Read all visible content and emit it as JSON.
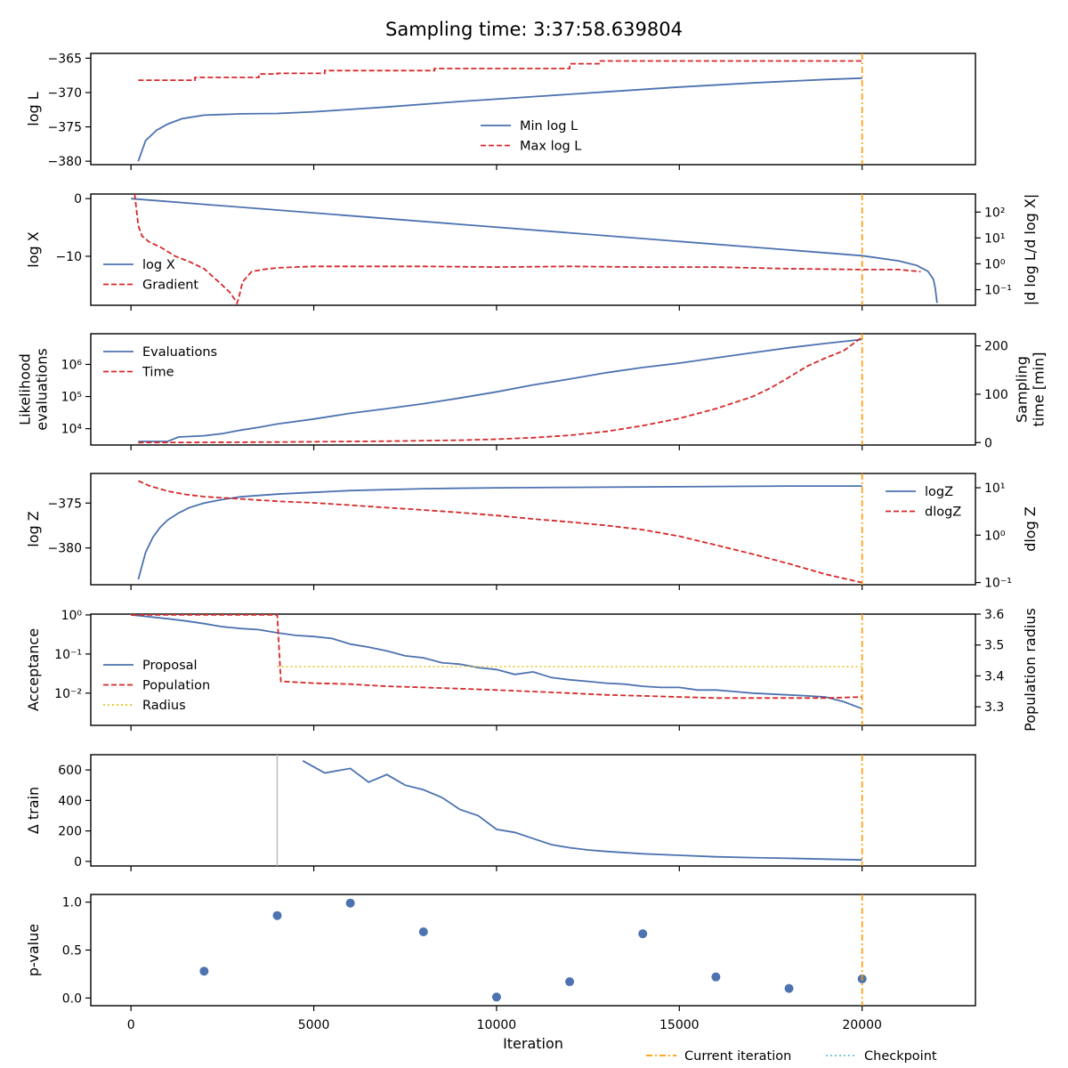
{
  "title": "Sampling time: 3:37:58.639804",
  "colors": {
    "blue": "#4c72b0",
    "red": "#d62728",
    "gold": "#e6c217",
    "orange": "#ff9900",
    "cyan": "#66c2d6",
    "gray": "#bbbbbb"
  },
  "x_axis": {
    "label": "Iteration",
    "xlim": [
      -1100,
      23100
    ],
    "ticks": [
      0,
      5000,
      10000,
      15000,
      20000
    ],
    "tick_labels": [
      "0",
      "5000",
      "10000",
      "15000",
      "20000"
    ]
  },
  "current_iteration": 20000,
  "figure_legend": [
    {
      "label": "Current iteration",
      "style": "dashdot",
      "color": "#ff9900"
    },
    {
      "label": "Checkpoint",
      "style": "dotted",
      "color": "#66c2d6"
    }
  ],
  "chart_data": [
    {
      "id": "logl",
      "type": "line",
      "ylabel": "log L",
      "ylim": [
        -380.5,
        -364.3
      ],
      "yticks": [
        -365,
        -370,
        -375,
        -380
      ],
      "ytick_labels": [
        "−365",
        "−370",
        "−375",
        "−380"
      ],
      "legend": "bottom-center",
      "series": [
        {
          "name": "Min log L",
          "axis": "left",
          "style": "solid",
          "color": "#4c72b0",
          "x": [
            200,
            400,
            700,
            1000,
            1400,
            2000,
            3000,
            4000,
            5000,
            7000,
            9000,
            11000,
            13000,
            15000,
            17000,
            19000,
            20000
          ],
          "y": [
            -380.0,
            -377.0,
            -375.5,
            -374.6,
            -373.8,
            -373.3,
            -373.1,
            -373.05,
            -372.8,
            -372.1,
            -371.3,
            -370.6,
            -369.9,
            -369.2,
            -368.6,
            -368.1,
            -367.9
          ]
        },
        {
          "name": "Max log L",
          "axis": "left",
          "style": "dashed",
          "color": "#d62728",
          "x": [
            200,
            1750,
            1750,
            3500,
            3500,
            4000,
            4000,
            5300,
            5300,
            8300,
            8300,
            12000,
            12000,
            12800,
            12800,
            20000
          ],
          "y": [
            -368.2,
            -368.2,
            -367.8,
            -367.8,
            -367.3,
            -367.3,
            -367.2,
            -367.2,
            -366.8,
            -366.8,
            -366.5,
            -366.5,
            -365.8,
            -365.8,
            -365.4,
            -365.4
          ]
        }
      ]
    },
    {
      "id": "logx",
      "type": "line",
      "ylabel": "log X",
      "ylabel_right": "|d log L/d log X|",
      "ylim": [
        -18.5,
        0.8
      ],
      "yticks": [
        0,
        -10
      ],
      "ytick_labels": [
        "0",
        "−10"
      ],
      "yscale_right": "log",
      "ylim_right": [
        0.025,
        500
      ],
      "yticks_right": [
        100,
        10,
        1,
        0.1
      ],
      "ytick_labels_right": [
        "10²",
        "10¹",
        "10⁰",
        "10⁻¹"
      ],
      "legend": "left",
      "series": [
        {
          "name": "log X",
          "axis": "left",
          "style": "solid",
          "color": "#4c72b0",
          "x": [
            0,
            20000,
            21000,
            21500,
            21800,
            21950,
            22000,
            22050
          ],
          "y": [
            0,
            -9.9,
            -10.8,
            -11.6,
            -12.6,
            -14.0,
            -15.5,
            -18.1
          ]
        },
        {
          "name": "Gradient",
          "axis": "right",
          "style": "dashed",
          "color": "#d62728",
          "x": [
            100,
            200,
            300,
            500,
            800,
            1200,
            1600,
            2000,
            2400,
            2700,
            2850,
            2900,
            2950,
            3050,
            3300,
            3600,
            4000,
            5000,
            6000,
            8000,
            10000,
            12000,
            14000,
            16000,
            18000,
            20000,
            21000,
            21600
          ],
          "y": [
            500,
            30,
            12,
            7,
            4.5,
            2.0,
            1.2,
            0.65,
            0.2,
            0.08,
            0.04,
            0.03,
            0.05,
            0.2,
            0.5,
            0.6,
            0.7,
            0.8,
            0.8,
            0.8,
            0.75,
            0.8,
            0.75,
            0.75,
            0.65,
            0.6,
            0.6,
            0.5
          ]
        }
      ]
    },
    {
      "id": "likelihood",
      "type": "line",
      "ylabel": "Likelihood\nevaluations",
      "ylabel_right": "Sampling\ntime [min]",
      "yscale": "log",
      "ylim": [
        3100,
        9000000
      ],
      "yticks": [
        10000,
        100000,
        1000000
      ],
      "ytick_labels": [
        "10⁴",
        "10⁵",
        "10⁶"
      ],
      "ylim_right": [
        -5,
        225
      ],
      "yticks_right": [
        0,
        100,
        200
      ],
      "ytick_labels_right": [
        "0",
        "100",
        "200"
      ],
      "legend": "top-left",
      "series": [
        {
          "name": "Evaluations",
          "axis": "left",
          "style": "solid",
          "color": "#4c72b0",
          "x": [
            200,
            1000,
            1300,
            2000,
            2500,
            3000,
            3500,
            4000,
            5000,
            6000,
            7000,
            8000,
            9000,
            10000,
            11000,
            12000,
            13000,
            14000,
            15000,
            16000,
            17000,
            18000,
            19000,
            20000
          ],
          "y": [
            4000,
            4000,
            5500,
            6000,
            7000,
            9000,
            11000,
            14000,
            20000,
            30000,
            42000,
            60000,
            90000,
            140000,
            230000,
            350000,
            550000,
            800000,
            1100000,
            1600000,
            2300000,
            3300000,
            4500000,
            6000000
          ]
        },
        {
          "name": "Time",
          "axis": "right",
          "style": "dashed",
          "color": "#d62728",
          "x": [
            200,
            4000,
            7000,
            9000,
            10000,
            11000,
            12000,
            13000,
            14000,
            15000,
            16000,
            17000,
            17500,
            18000,
            18500,
            19000,
            19500,
            20000
          ],
          "y": [
            0,
            1,
            3,
            5,
            7,
            10,
            15,
            23,
            35,
            50,
            70,
            95,
            113,
            135,
            158,
            175,
            190,
            218
          ]
        }
      ]
    },
    {
      "id": "logz",
      "type": "line",
      "ylabel": "log Z",
      "ylabel_right": "dlog Z",
      "ylim": [
        -384.1,
        -371.7
      ],
      "yticks": [
        -375,
        -380
      ],
      "ytick_labels": [
        "−375",
        "−380"
      ],
      "yscale_right": "log",
      "ylim_right": [
        0.09,
        20
      ],
      "yticks_right": [
        10,
        1,
        0.1
      ],
      "ytick_labels_right": [
        "10¹",
        "10⁰",
        "10⁻¹"
      ],
      "legend": "top-right",
      "series": [
        {
          "name": "logZ",
          "axis": "left",
          "style": "solid",
          "color": "#4c72b0",
          "x": [
            200,
            400,
            600,
            800,
            1000,
            1300,
            1600,
            2000,
            2500,
            3000,
            4000,
            5000,
            6000,
            8000,
            10000,
            12000,
            14000,
            16000,
            18000,
            20000
          ],
          "y": [
            -383.5,
            -380.5,
            -378.8,
            -377.7,
            -376.9,
            -376.1,
            -375.5,
            -375.0,
            -374.6,
            -374.3,
            -374.0,
            -373.8,
            -373.6,
            -373.4,
            -373.3,
            -373.25,
            -373.2,
            -373.15,
            -373.1,
            -373.1
          ]
        },
        {
          "name": "dlogZ",
          "axis": "right",
          "style": "dashed",
          "color": "#d62728",
          "x": [
            200,
            500,
            1000,
            1500,
            2000,
            3000,
            4000,
            5000,
            6000,
            7000,
            8000,
            9000,
            10000,
            11000,
            12000,
            13000,
            14000,
            15000,
            16000,
            17000,
            18000,
            19000,
            20000
          ],
          "y": [
            14,
            11,
            8.5,
            7.2,
            6.5,
            5.8,
            5.2,
            4.8,
            4.3,
            3.8,
            3.4,
            3.0,
            2.6,
            2.2,
            1.9,
            1.6,
            1.3,
            0.95,
            0.62,
            0.4,
            0.25,
            0.15,
            0.1
          ]
        }
      ]
    },
    {
      "id": "acceptance",
      "type": "line",
      "ylabel": "Acceptance",
      "ylabel_right": "Population radius",
      "yscale": "log",
      "ylim": [
        0.0015,
        1.05
      ],
      "yticks": [
        1,
        0.1,
        0.01
      ],
      "ytick_labels": [
        "10⁰",
        "10⁻¹",
        "10⁻²"
      ],
      "ylim_right": [
        3.24,
        3.6
      ],
      "yticks_right": [
        3.6,
        3.5,
        3.4,
        3.3
      ],
      "ytick_labels_right": [
        "3.6",
        "3.5",
        "3.4",
        "3.3"
      ],
      "legend": "left",
      "series": [
        {
          "name": "Proposal",
          "axis": "left",
          "style": "solid",
          "color": "#4c72b0",
          "x": [
            0,
            1000,
            1500,
            2000,
            2500,
            3000,
            3500,
            4000,
            4500,
            5000,
            5500,
            6000,
            6500,
            7000,
            7500,
            8000,
            8500,
            9000,
            9500,
            10000,
            10500,
            11000,
            11500,
            12000,
            12500,
            13000,
            13500,
            14000,
            14500,
            15000,
            15500,
            16000,
            16500,
            17000,
            17500,
            18000,
            18500,
            19000,
            19500,
            20000
          ],
          "y": [
            1.0,
            0.8,
            0.7,
            0.6,
            0.5,
            0.45,
            0.42,
            0.35,
            0.3,
            0.28,
            0.25,
            0.18,
            0.15,
            0.12,
            0.09,
            0.08,
            0.06,
            0.055,
            0.045,
            0.04,
            0.03,
            0.035,
            0.025,
            0.022,
            0.02,
            0.018,
            0.017,
            0.015,
            0.014,
            0.014,
            0.012,
            0.012,
            0.011,
            0.01,
            0.0095,
            0.009,
            0.0085,
            0.008,
            0.006,
            0.004
          ]
        },
        {
          "name": "Population",
          "axis": "left",
          "style": "dashed",
          "color": "#d62728",
          "x": [
            0,
            3800,
            4000,
            4100,
            5000,
            6000,
            7000,
            8000,
            9000,
            10000,
            11000,
            12000,
            13000,
            14000,
            15000,
            16000,
            17000,
            18000,
            19000,
            20000
          ],
          "y": [
            1.0,
            1.0,
            1.0,
            0.02,
            0.018,
            0.017,
            0.015,
            0.014,
            0.013,
            0.012,
            0.011,
            0.01,
            0.009,
            0.0085,
            0.008,
            0.0075,
            0.0075,
            0.0075,
            0.0075,
            0.008
          ]
        },
        {
          "name": "Radius",
          "axis": "right",
          "style": "dotted",
          "color": "#e6c217",
          "x": [
            4000,
            20000
          ],
          "y": [
            3.43,
            3.43
          ]
        }
      ]
    },
    {
      "id": "delta_train",
      "type": "line",
      "ylabel": "Δ train",
      "ylim": [
        -30,
        700
      ],
      "yticks": [
        0,
        200,
        400,
        600
      ],
      "ytick_labels": [
        "0",
        "200",
        "400",
        "600"
      ],
      "series": [
        {
          "name": "",
          "axis": "left",
          "style": "solid",
          "color": "#4c72b0",
          "x": [
            4700,
            5000,
            5300,
            6000,
            6500,
            7000,
            7500,
            8000,
            8500,
            9000,
            9500,
            10000,
            10500,
            11000,
            11500,
            12000,
            12500,
            13000,
            14000,
            15000,
            16000,
            17000,
            18000,
            19000,
            20000
          ],
          "y": [
            660,
            620,
            580,
            610,
            520,
            570,
            500,
            470,
            420,
            340,
            300,
            210,
            190,
            150,
            110,
            90,
            75,
            65,
            50,
            40,
            30,
            25,
            20,
            15,
            10
          ]
        }
      ]
    },
    {
      "id": "pvalue",
      "type": "scatter",
      "ylabel": "p-value",
      "ylim": [
        -0.08,
        1.08
      ],
      "yticks": [
        0.0,
        0.5,
        1.0
      ],
      "ytick_labels": [
        "0.0",
        "0.5",
        "1.0"
      ],
      "series": [
        {
          "name": "",
          "axis": "left",
          "color": "#4c72b0",
          "x": [
            2000,
            4000,
            6000,
            8000,
            10000,
            12000,
            14000,
            16000,
            18000,
            20000
          ],
          "y": [
            0.28,
            0.86,
            0.99,
            0.69,
            0.01,
            0.17,
            0.67,
            0.22,
            0.1,
            0.2
          ]
        }
      ]
    }
  ]
}
